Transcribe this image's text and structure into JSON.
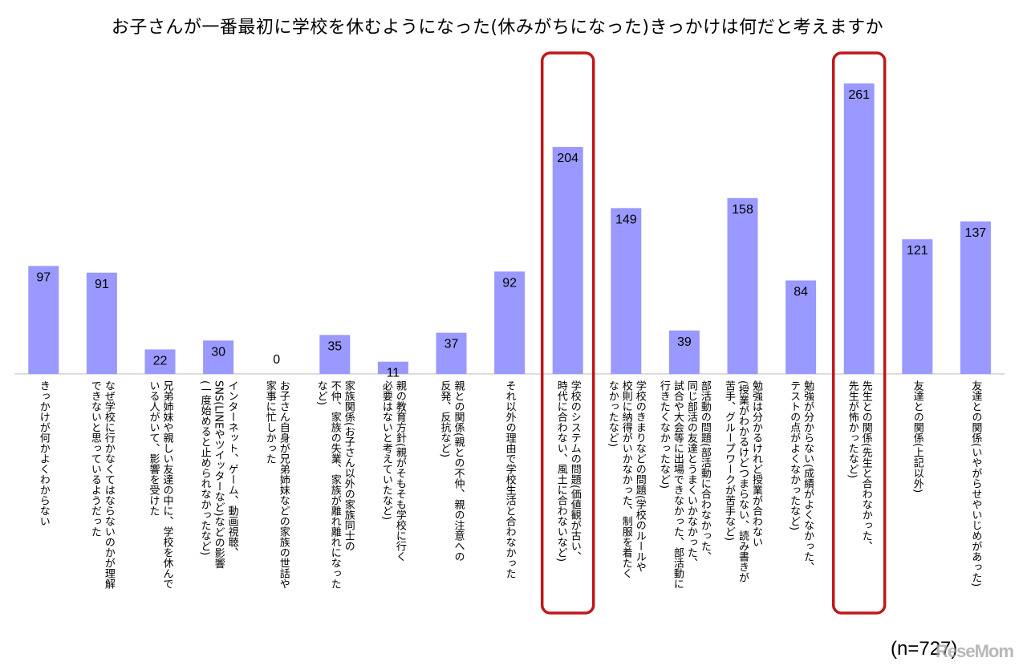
{
  "chart_data": {
    "type": "bar",
    "title": "お子さんが一番最初に学校を休むようになった(休みがちになった)きっかけは何だと考えますか",
    "categories": [
      [
        "きっかけが何かよくわからない"
      ],
      [
        "なぜ学校に行かなくてはならないのかが理解",
        "できないと思っているようだった"
      ],
      [
        "兄弟姉妹や親しい友達の中に、学校を休んで",
        "いる人がいて、影響を受けた"
      ],
      [
        "インターネット、ゲーム、動画視聴、",
        "SNS(LINEやツイッターなど)などの影響",
        "(一度始めると止められなかったなど)"
      ],
      [
        "お子さん自身が兄弟姉妹などの家族の世話や",
        "家事に忙しかった"
      ],
      [
        "家族関係(お子さん以外の家族同士の",
        "不仲、家族の失業、家族が離れ離れになった",
        "など)"
      ],
      [
        "親の教育方針(親がそもそも学校に行く",
        "必要はないと考えていたなど)"
      ],
      [
        "親との関係(親との不仲、親の注意への",
        "反発、反抗など)"
      ],
      [
        "それ以外の理由で学校生活と合わなかった"
      ],
      [
        "学校のシステムの問題(価値観が古い、",
        "時代に合わない、風土に合わないなど)"
      ],
      [
        "学校のきまりなどの問題(学校のルールや",
        "校則に納得がいかなかった、制服を着たく",
        "なかったなど)"
      ],
      [
        "部活動の問題(部活動に合わなかった、",
        "同じ部活の友達とうまくいかなかった、",
        "試合や大会等に出場できなかった、部活動に",
        "行きたくなかったなど)"
      ],
      [
        "勉強は分かるけれど授業が合わない",
        "(授業がわかるけどつまらない、読み書きが",
        "苦手、グループワークが苦手など)"
      ],
      [
        "勉強が分からない(成績がよくなかった、",
        "テストの点がよくなかったなど)"
      ],
      [
        "先生との関係(先生と合わなかった、",
        "先生が怖かったなど)"
      ],
      [
        "友達との関係(上記以外)"
      ],
      [
        "友達との関係(いやがらせやいじめがあった)"
      ]
    ],
    "values": [
      97,
      91,
      22,
      30,
      0,
      35,
      11,
      37,
      92,
      204,
      149,
      39,
      158,
      84,
      261,
      121,
      137
    ],
    "highlighted": [
      9,
      14
    ],
    "bar_color": "#9999ff",
    "highlight_color": "#c0161b",
    "ylim": [
      0,
      280
    ],
    "grid": false,
    "note": "(n=727)"
  },
  "watermark": "ReseMom"
}
